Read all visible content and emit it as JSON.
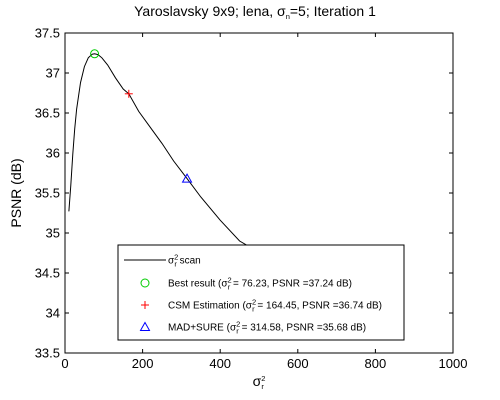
{
  "chart_data": {
    "type": "line",
    "title": "Yaroslavsky 9x9; lena, σn=5; Iteration 1",
    "title_parts": {
      "prefix": "Yaroslavsky 9x9; lena, σ",
      "sub": "n",
      "suffix": "=5; Iteration 1"
    },
    "xlabel": {
      "base": "σ",
      "sup": "2",
      "sub": "r"
    },
    "ylabel": "PSNR (dB)",
    "xlim": [
      0,
      1000
    ],
    "ylim": [
      33.5,
      37.5
    ],
    "xticks": [
      0,
      200,
      400,
      600,
      800,
      1000
    ],
    "yticks": [
      33.5,
      34,
      34.5,
      35,
      35.5,
      36,
      36.5,
      37,
      37.5
    ],
    "ytick_labels": [
      "33.5",
      "34",
      "34.5",
      "35",
      "35.5",
      "36",
      "36.5",
      "37",
      "37.5"
    ],
    "grid": false,
    "legend_position": "bottom-center",
    "series": [
      {
        "name": "σr2 scan",
        "label_parts": {
          "base": "σ",
          "sup": "2",
          "sub": "r",
          "suffix": " scan"
        },
        "color": "#000000",
        "style": "line",
        "x": [
          10,
          15,
          20,
          25,
          30,
          40,
          50,
          60,
          70,
          76.23,
          85,
          95,
          110,
          130,
          150,
          164.45,
          190,
          220,
          250,
          280,
          314.58,
          350,
          400,
          450,
          500,
          510
        ],
        "y": [
          35.27,
          35.6,
          35.98,
          36.3,
          36.55,
          36.88,
          37.08,
          37.19,
          37.235,
          37.24,
          37.23,
          37.19,
          37.1,
          36.94,
          36.8,
          36.74,
          36.52,
          36.32,
          36.12,
          35.9,
          35.68,
          35.45,
          35.16,
          34.9,
          34.76,
          34.74
        ]
      }
    ],
    "markers": [
      {
        "name": "Best result",
        "marker": "circle",
        "color": "#00cc00",
        "x": 76.23,
        "y": 37.24,
        "label_prefix": "Best result (σ",
        "label_suffix": " = 76.23, PSNR =37.24 dB)"
      },
      {
        "name": "CSM Estimation",
        "marker": "plus",
        "color": "#ff0000",
        "x": 164.45,
        "y": 36.74,
        "label_prefix": "CSM Estimation (σ",
        "label_suffix": " = 164.45, PSNR =36.74 dB)"
      },
      {
        "name": "MAD+SURE",
        "marker": "triangle",
        "color": "#0000ff",
        "x": 314.58,
        "y": 35.68,
        "label_prefix": "MAD+SURE (σ",
        "label_suffix": " = 314.58, PSNR =35.68 dB)"
      }
    ]
  }
}
